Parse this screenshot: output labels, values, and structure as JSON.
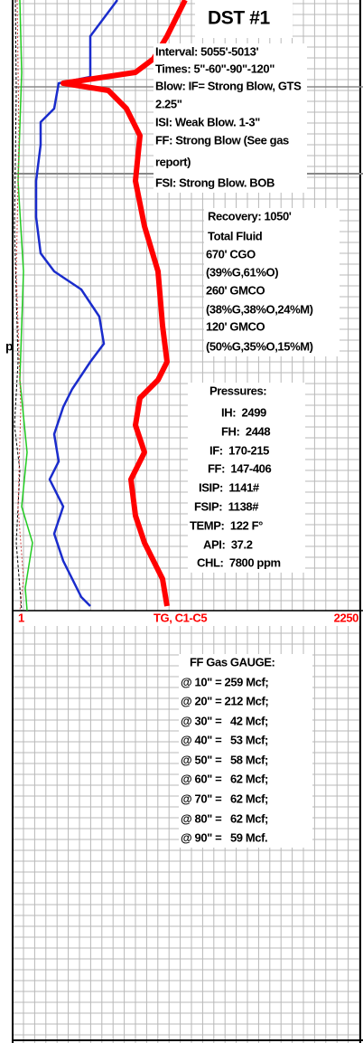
{
  "title": "DST #1",
  "test_notes": [
    "Interval: 5055'-5013'",
    "Times: 5\"-60\"-90\"-120\"",
    "Blow: IF= Strong Blow, GTS",
    "2.25\"",
    "ISI: Weak Blow. 1-3\"",
    "FF: Strong Blow (See gas",
    "report)",
    "FSI: Strong Blow. BOB"
  ],
  "recovery": [
    "Recovery: 1050'",
    "Total Fluid",
    "670' CGO",
    "(39%G,61%O)",
    "260' GMCO",
    "(38%G,38%O,24%M)",
    "120' GMCO",
    "(50%G,35%O,15%M)"
  ],
  "pressures": [
    "Pressures:",
    "IH:  2499",
    "FH:  2448",
    "IF:  170-215",
    "FF:  147-406",
    "ISIP:  1141#",
    "FSIP:  1138#",
    "TEMP:  122 F°",
    "API:  37.2",
    "CHL:  7800 ppm"
  ],
  "scale": {
    "left": "1",
    "label": "TG, C1-C5",
    "right": "2250"
  },
  "gas_gauge": [
    "FF Gas GAUGE:",
    "@ 10\" = 259 Mcf;",
    "@ 20\" = 212 Mcf;",
    "@ 30\" =   42 Mcf;",
    "@ 40\" =   53 Mcf;",
    "@ 50\" =   58 Mcf;",
    "@ 60\" =   62 Mcf;",
    "@ 70\" =   62 Mcf;",
    "@ 80\" =   62 Mcf;",
    "@ 90\" =   59 Mcf."
  ],
  "edge_label": "p"
}
